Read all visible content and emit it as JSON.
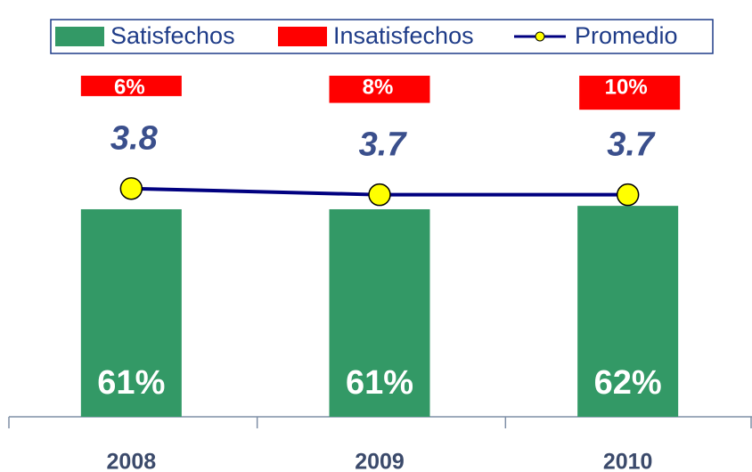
{
  "chart_data": {
    "type": "bar",
    "categories": [
      "2008",
      "2009",
      "2010"
    ],
    "series": [
      {
        "name": "Satisfechos",
        "color": "#339966",
        "values": [
          61,
          61,
          62
        ],
        "value_labels": [
          "61%",
          "61%",
          "62%"
        ]
      },
      {
        "name": "Insatisfechos",
        "color": "#ff0000",
        "values": [
          6,
          8,
          10
        ],
        "value_labels": [
          "6%",
          "8%",
          "10%"
        ]
      },
      {
        "name": "Promedio",
        "type": "line",
        "axis": "y2",
        "color": "#000080",
        "marker_color": "#ffff00",
        "values": [
          3.8,
          3.7,
          3.7
        ]
      }
    ],
    "ylim": [
      0,
      100
    ],
    "y2lim": [
      0.13,
      5.6
    ],
    "legend": "top"
  }
}
